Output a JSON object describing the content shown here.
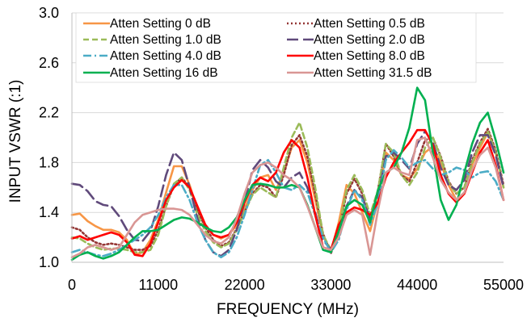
{
  "chart_data": {
    "type": "line",
    "xlabel": "FREQUENCY (MHz)",
    "ylabel": "INPUT VSWR (:1)",
    "xlim": [
      0,
      55000
    ],
    "ylim": [
      1.0,
      3.0
    ],
    "xticks": [
      0,
      11000,
      22000,
      33000,
      44000,
      55000
    ],
    "yticks": [
      1.0,
      1.4,
      1.8,
      2.2,
      2.6,
      3.0
    ],
    "xtick_labels": [
      "0",
      "11000",
      "22000",
      "33000",
      "44000",
      "55000"
    ],
    "ytick_labels": [
      "1.0",
      "1.4",
      "1.8",
      "2.2",
      "2.6",
      "3.0"
    ],
    "grid": "horizontal",
    "legend": "top, two columns",
    "series": [
      {
        "name": "Atten Setting 0 dB",
        "color": "#f79646",
        "dash": "solid",
        "x": [
          0,
          1000,
          2000,
          3000,
          4000,
          5000,
          6000,
          7000,
          8000,
          9000,
          10000,
          11000,
          12000,
          13000,
          14000,
          15000,
          16000,
          17000,
          18000,
          19000,
          20000,
          21000,
          22000,
          23000,
          24000,
          25000,
          26000,
          27000,
          28000,
          29000,
          30000,
          31000,
          32000,
          33000,
          34000,
          35000,
          36000,
          37000,
          38000,
          39000,
          40000,
          41000,
          42000,
          43000,
          44000,
          45000,
          46000,
          47000,
          48000,
          49000,
          50000,
          51000,
          52000,
          53000,
          54000,
          55000
        ],
        "y": [
          1.38,
          1.39,
          1.33,
          1.29,
          1.26,
          1.26,
          1.24,
          1.18,
          1.06,
          1.08,
          1.18,
          1.34,
          1.56,
          1.77,
          1.77,
          1.62,
          1.42,
          1.3,
          1.22,
          1.19,
          1.22,
          1.3,
          1.43,
          1.58,
          1.68,
          1.7,
          1.58,
          1.72,
          1.92,
          1.98,
          1.8,
          1.5,
          1.22,
          1.08,
          1.32,
          1.62,
          1.55,
          1.4,
          1.25,
          1.5,
          1.88,
          1.82,
          1.7,
          1.67,
          1.75,
          1.88,
          1.93,
          1.8,
          1.62,
          1.5,
          1.55,
          1.78,
          1.92,
          2.04,
          1.88,
          1.6
        ]
      },
      {
        "name": "Atten Setting 0.5 dB",
        "color": "#943634",
        "dash": "dot",
        "x": [
          0,
          1000,
          2000,
          3000,
          4000,
          5000,
          6000,
          7000,
          8000,
          9000,
          10000,
          11000,
          12000,
          13000,
          14000,
          15000,
          16000,
          17000,
          18000,
          19000,
          20000,
          21000,
          22000,
          23000,
          24000,
          25000,
          26000,
          27000,
          28000,
          29000,
          30000,
          31000,
          32000,
          33000,
          34000,
          35000,
          36000,
          37000,
          38000,
          39000,
          40000,
          41000,
          42000,
          43000,
          44000,
          45000,
          46000,
          47000,
          48000,
          49000,
          50000,
          51000,
          52000,
          53000,
          54000,
          55000
        ],
        "y": [
          1.28,
          1.26,
          1.2,
          1.16,
          1.14,
          1.15,
          1.14,
          1.12,
          1.1,
          1.1,
          1.13,
          1.26,
          1.45,
          1.62,
          1.68,
          1.6,
          1.42,
          1.28,
          1.18,
          1.13,
          1.16,
          1.27,
          1.4,
          1.55,
          1.62,
          1.6,
          1.52,
          1.7,
          1.94,
          2.02,
          1.85,
          1.55,
          1.23,
          1.07,
          1.25,
          1.55,
          1.67,
          1.55,
          1.32,
          1.58,
          1.95,
          1.85,
          1.7,
          1.65,
          1.8,
          1.98,
          2.0,
          1.85,
          1.65,
          1.55,
          1.6,
          1.82,
          1.96,
          2.07,
          1.9,
          1.62
        ]
      },
      {
        "name": "Atten Setting 1.0 dB",
        "color": "#9bbb59",
        "dash": "dash",
        "x": [
          0,
          1000,
          2000,
          3000,
          4000,
          5000,
          6000,
          7000,
          8000,
          9000,
          10000,
          11000,
          12000,
          13000,
          14000,
          15000,
          16000,
          17000,
          18000,
          19000,
          20000,
          21000,
          22000,
          23000,
          24000,
          25000,
          26000,
          27000,
          28000,
          29000,
          30000,
          31000,
          32000,
          33000,
          34000,
          35000,
          36000,
          37000,
          38000,
          39000,
          40000,
          41000,
          42000,
          43000,
          44000,
          45000,
          46000,
          47000,
          48000,
          49000,
          50000,
          51000,
          52000,
          53000,
          54000,
          55000
        ],
        "y": [
          1.2,
          1.19,
          1.15,
          1.12,
          1.1,
          1.11,
          1.11,
          1.1,
          1.08,
          1.08,
          1.1,
          1.22,
          1.45,
          1.63,
          1.68,
          1.58,
          1.38,
          1.25,
          1.16,
          1.12,
          1.15,
          1.26,
          1.4,
          1.54,
          1.6,
          1.56,
          1.52,
          1.76,
          2.0,
          2.12,
          1.92,
          1.6,
          1.22,
          1.1,
          1.26,
          1.58,
          1.7,
          1.58,
          1.38,
          1.58,
          1.95,
          1.88,
          1.7,
          1.62,
          1.72,
          1.92,
          2.0,
          1.84,
          1.64,
          1.55,
          1.6,
          1.8,
          1.95,
          2.05,
          1.88,
          1.6
        ]
      },
      {
        "name": "Atten Setting 2.0 dB",
        "color": "#604a7b",
        "dash": "longdash",
        "x": [
          0,
          1000,
          2000,
          3000,
          4000,
          5000,
          6000,
          7000,
          8000,
          9000,
          10000,
          11000,
          12000,
          13000,
          14000,
          15000,
          16000,
          17000,
          18000,
          19000,
          20000,
          21000,
          22000,
          23000,
          24000,
          25000,
          26000,
          27000,
          28000,
          29000,
          30000,
          31000,
          32000,
          33000,
          34000,
          35000,
          36000,
          37000,
          38000,
          39000,
          40000,
          41000,
          42000,
          43000,
          44000,
          45000,
          46000,
          47000,
          48000,
          49000,
          50000,
          51000,
          52000,
          53000,
          54000,
          55000
        ],
        "y": [
          1.63,
          1.62,
          1.57,
          1.49,
          1.46,
          1.45,
          1.37,
          1.26,
          1.18,
          1.17,
          1.25,
          1.45,
          1.7,
          1.88,
          1.82,
          1.6,
          1.35,
          1.18,
          1.08,
          1.05,
          1.1,
          1.26,
          1.48,
          1.74,
          1.82,
          1.76,
          1.65,
          1.6,
          1.68,
          1.72,
          1.6,
          1.4,
          1.18,
          1.1,
          1.2,
          1.45,
          1.58,
          1.52,
          1.35,
          1.52,
          1.85,
          1.88,
          1.82,
          1.75,
          1.95,
          2.05,
          1.96,
          1.76,
          1.62,
          1.58,
          1.66,
          1.88,
          2.02,
          2.02,
          1.86,
          1.6
        ]
      },
      {
        "name": "Atten Setting 4.0 dB",
        "color": "#4bacc6",
        "dash": "dashdot",
        "x": [
          0,
          1000,
          2000,
          3000,
          4000,
          5000,
          6000,
          7000,
          8000,
          9000,
          10000,
          11000,
          12000,
          13000,
          14000,
          15000,
          16000,
          17000,
          18000,
          19000,
          20000,
          21000,
          22000,
          23000,
          24000,
          25000,
          26000,
          27000,
          28000,
          29000,
          30000,
          31000,
          32000,
          33000,
          34000,
          35000,
          36000,
          37000,
          38000,
          39000,
          40000,
          41000,
          42000,
          43000,
          44000,
          45000,
          46000,
          47000,
          48000,
          49000,
          50000,
          51000,
          52000,
          53000,
          54000,
          55000
        ],
        "y": [
          1.08,
          1.1,
          1.08,
          1.06,
          1.05,
          1.07,
          1.1,
          1.14,
          1.18,
          1.22,
          1.28,
          1.38,
          1.52,
          1.62,
          1.62,
          1.5,
          1.32,
          1.18,
          1.08,
          1.04,
          1.08,
          1.2,
          1.38,
          1.58,
          1.78,
          1.82,
          1.72,
          1.6,
          1.58,
          1.62,
          1.56,
          1.38,
          1.2,
          1.08,
          1.18,
          1.42,
          1.58,
          1.5,
          1.3,
          1.48,
          1.82,
          1.9,
          1.84,
          1.76,
          1.8,
          1.82,
          1.75,
          1.7,
          1.72,
          1.76,
          1.74,
          1.68,
          1.72,
          1.73,
          1.65,
          1.5
        ]
      },
      {
        "name": "Atten Setting 8.0 dB",
        "color": "#ff0000",
        "dash": "solid",
        "x": [
          0,
          1000,
          2000,
          3000,
          4000,
          5000,
          6000,
          7000,
          8000,
          9000,
          10000,
          11000,
          12000,
          13000,
          14000,
          15000,
          16000,
          17000,
          18000,
          19000,
          20000,
          21000,
          22000,
          23000,
          24000,
          25000,
          26000,
          27000,
          28000,
          29000,
          30000,
          31000,
          32000,
          33000,
          34000,
          35000,
          36000,
          37000,
          38000,
          39000,
          40000,
          41000,
          42000,
          43000,
          44000,
          45000,
          46000,
          47000,
          48000,
          49000,
          50000,
          51000,
          52000,
          53000,
          54000,
          55000
        ],
        "y": [
          1.19,
          1.21,
          1.18,
          1.2,
          1.22,
          1.24,
          1.22,
          1.16,
          1.06,
          1.05,
          1.15,
          1.32,
          1.5,
          1.6,
          1.66,
          1.6,
          1.45,
          1.3,
          1.22,
          1.2,
          1.22,
          1.32,
          1.48,
          1.62,
          1.68,
          1.65,
          1.72,
          1.88,
          1.98,
          1.92,
          1.68,
          1.38,
          1.12,
          1.1,
          1.3,
          1.4,
          1.44,
          1.42,
          1.38,
          1.48,
          1.68,
          1.8,
          1.88,
          1.96,
          2.06,
          2.06,
          1.94,
          1.7,
          1.55,
          1.48,
          1.55,
          1.72,
          1.88,
          1.98,
          1.78,
          1.5
        ]
      },
      {
        "name": "Atten Setting 16 dB",
        "color": "#00b050",
        "dash": "solid",
        "x": [
          0,
          1000,
          2000,
          3000,
          4000,
          5000,
          6000,
          7000,
          8000,
          9000,
          10000,
          11000,
          12000,
          13000,
          14000,
          15000,
          16000,
          17000,
          18000,
          19000,
          20000,
          21000,
          22000,
          23000,
          24000,
          25000,
          26000,
          27000,
          28000,
          29000,
          30000,
          31000,
          32000,
          33000,
          34000,
          35000,
          36000,
          37000,
          38000,
          39000,
          40000,
          41000,
          42000,
          43000,
          44000,
          45000,
          46000,
          47000,
          48000,
          49000,
          50000,
          51000,
          52000,
          53000,
          54000,
          55000
        ],
        "y": [
          1.02,
          1.06,
          1.08,
          1.05,
          1.03,
          1.05,
          1.08,
          1.14,
          1.2,
          1.25,
          1.25,
          1.26,
          1.3,
          1.34,
          1.36,
          1.35,
          1.32,
          1.28,
          1.25,
          1.24,
          1.28,
          1.36,
          1.5,
          1.62,
          1.63,
          1.62,
          1.6,
          1.6,
          1.62,
          1.6,
          1.46,
          1.28,
          1.1,
          1.08,
          1.25,
          1.45,
          1.5,
          1.46,
          1.32,
          1.58,
          1.72,
          1.76,
          1.88,
          2.08,
          2.4,
          2.3,
          1.88,
          1.5,
          1.34,
          1.46,
          1.72,
          1.95,
          2.12,
          2.2,
          1.98,
          1.72
        ]
      },
      {
        "name": "Atten Setting 31.5 dB",
        "color": "#d99694",
        "dash": "solid",
        "x": [
          0,
          1000,
          2000,
          3000,
          4000,
          5000,
          6000,
          7000,
          8000,
          9000,
          10000,
          11000,
          12000,
          13000,
          14000,
          15000,
          16000,
          17000,
          18000,
          19000,
          20000,
          21000,
          22000,
          23000,
          24000,
          25000,
          26000,
          27000,
          28000,
          29000,
          30000,
          31000,
          32000,
          33000,
          34000,
          35000,
          36000,
          37000,
          38000,
          39000,
          40000,
          41000,
          42000,
          43000,
          44000,
          45000,
          46000,
          47000,
          48000,
          49000,
          50000,
          51000,
          52000,
          53000,
          54000,
          55000
        ],
        "y": [
          1.04,
          1.07,
          1.12,
          1.14,
          1.12,
          1.1,
          1.12,
          1.22,
          1.32,
          1.38,
          1.4,
          1.42,
          1.43,
          1.43,
          1.42,
          1.38,
          1.3,
          1.22,
          1.17,
          1.15,
          1.2,
          1.35,
          1.55,
          1.72,
          1.78,
          1.8,
          1.76,
          1.7,
          1.66,
          1.6,
          1.45,
          1.28,
          1.12,
          1.1,
          1.2,
          1.38,
          1.42,
          1.38,
          1.06,
          1.42,
          1.72,
          1.76,
          1.72,
          1.7,
          1.98,
          2.0,
          1.84,
          1.66,
          1.56,
          1.5,
          1.56,
          1.74,
          1.86,
          1.92,
          1.76,
          1.5
        ]
      }
    ]
  }
}
